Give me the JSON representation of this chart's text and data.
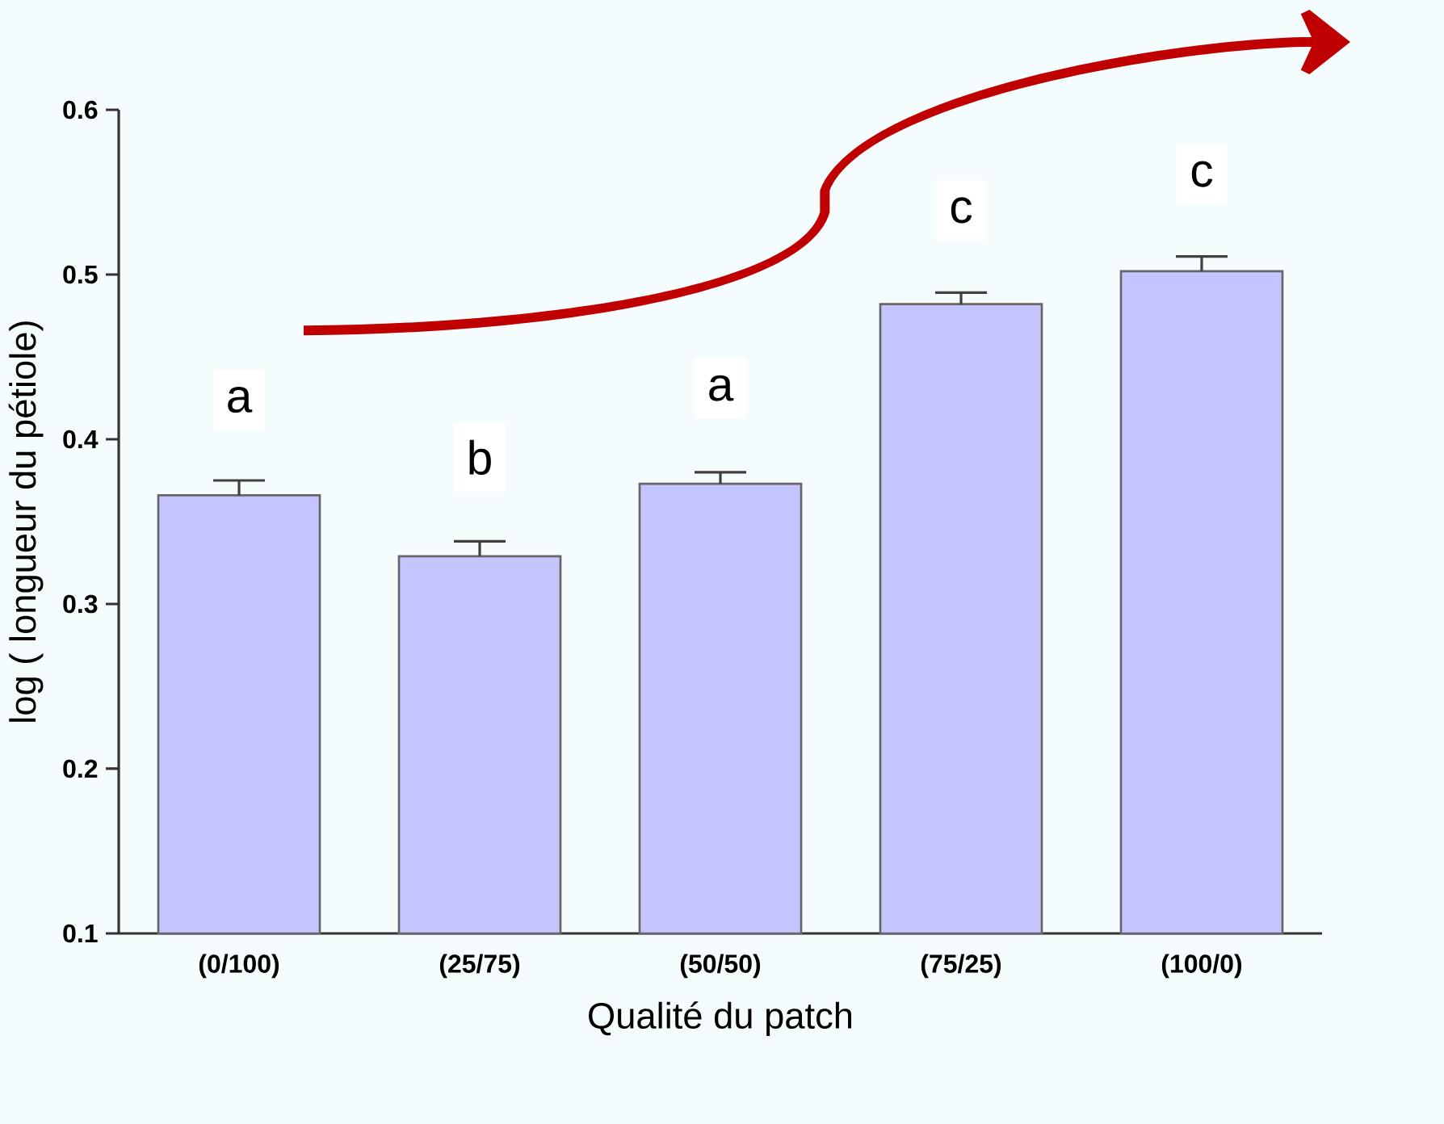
{
  "chart_data": {
    "type": "bar",
    "xlabel": "Qualité du patch",
    "ylabel": "log ( longueur du pétiole)",
    "categories": [
      "(0/100)",
      "(25/75)",
      "(50/50)",
      "(75/25)",
      "(100/0)"
    ],
    "values": [
      0.366,
      0.329,
      0.373,
      0.482,
      0.502
    ],
    "errors": [
      0.009,
      0.009,
      0.007,
      0.007,
      0.009
    ],
    "color": "#c4c4ff",
    "ylim": [
      0.1,
      0.6
    ],
    "yticks": [
      0.1,
      0.2,
      0.3,
      0.4,
      0.5,
      0.6
    ],
    "annotations": [
      {
        "text": "a",
        "x": "(0/100)",
        "y": 0.424
      },
      {
        "text": "b",
        "x": "(25/75)",
        "y": 0.389
      },
      {
        "text": "a",
        "x": "(50/50)",
        "y": 0.431
      },
      {
        "text": "c",
        "x": "(75/25)",
        "y": 0.539
      },
      {
        "text": "c",
        "x": "(100/0)",
        "y": 0.561
      }
    ]
  }
}
